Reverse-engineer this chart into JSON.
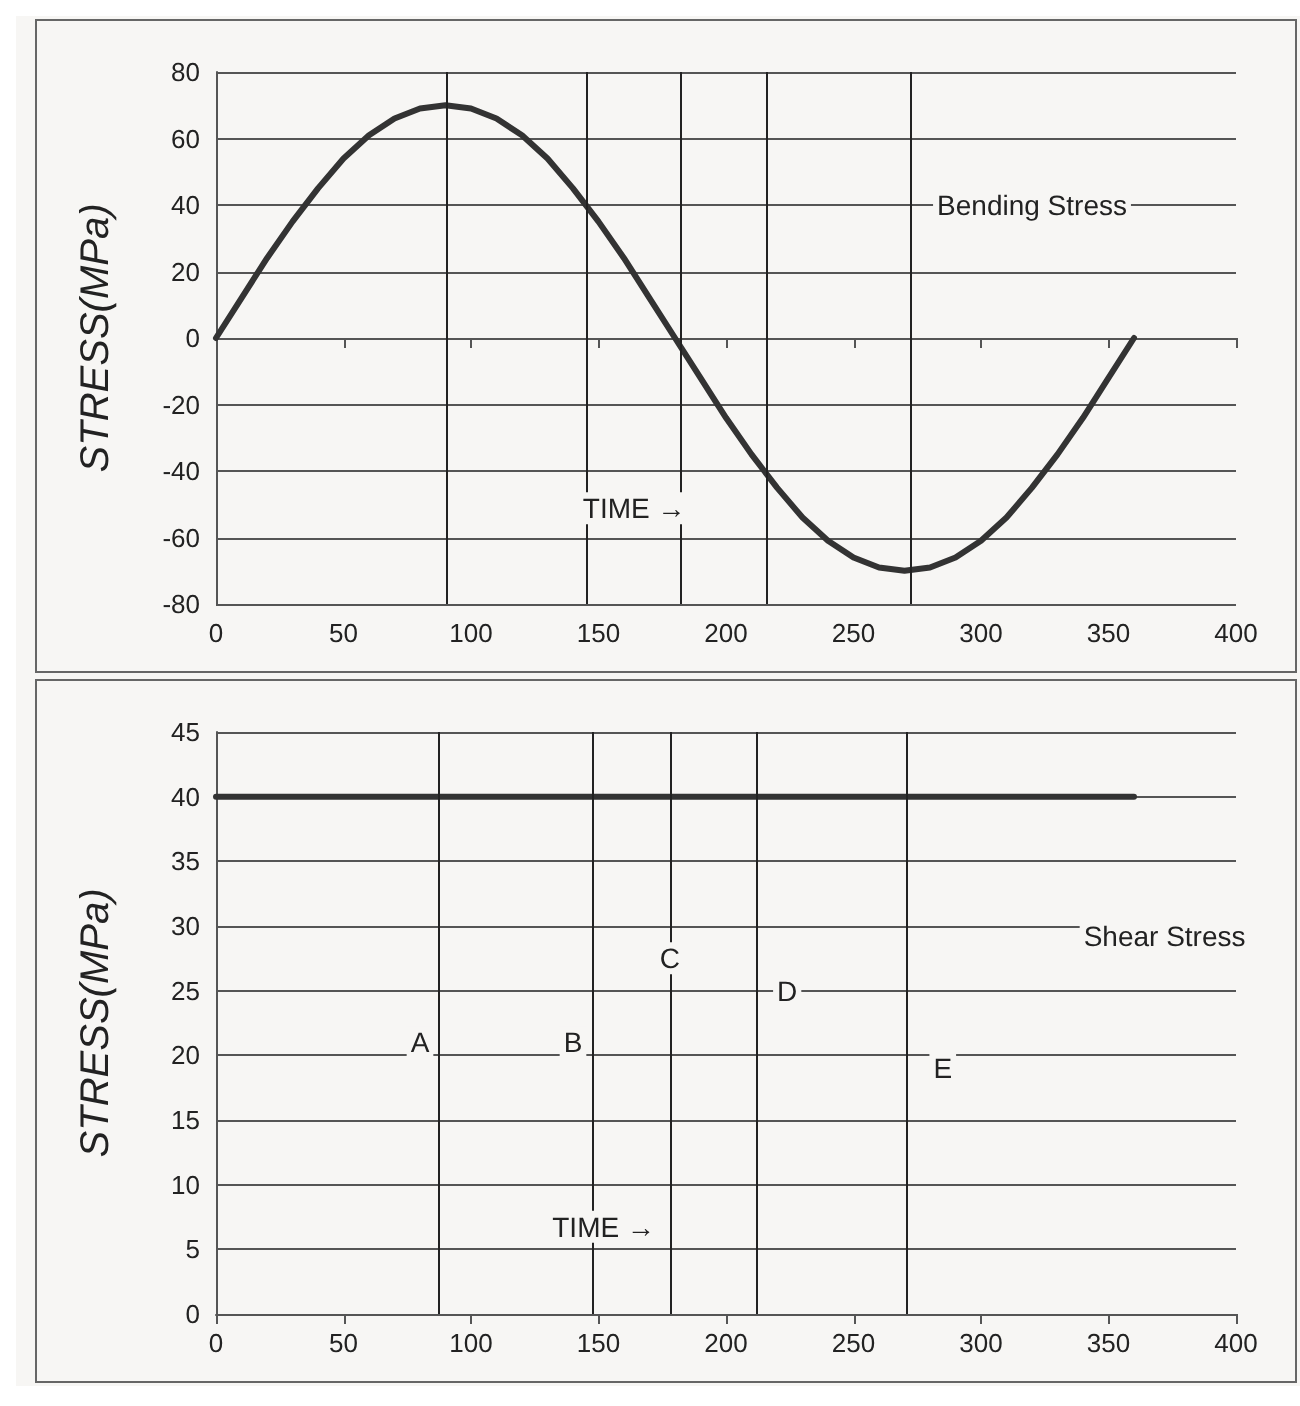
{
  "chart_data": [
    {
      "type": "line",
      "ylabel": "STRESS(MPa)",
      "x": [
        0,
        10,
        20,
        30,
        40,
        50,
        60,
        70,
        80,
        90,
        100,
        110,
        120,
        130,
        140,
        150,
        160,
        170,
        180,
        190,
        200,
        210,
        220,
        230,
        240,
        250,
        260,
        270,
        280,
        290,
        300,
        310,
        320,
        330,
        340,
        350,
        360
      ],
      "series": [
        {
          "color": "#333333",
          "values": [
            0,
            12,
            24,
            35,
            45,
            54,
            61,
            66,
            69,
            70,
            69,
            66,
            61,
            54,
            45,
            35,
            24,
            12,
            0,
            -12,
            -24,
            -35,
            -45,
            -54,
            -61,
            -66,
            -69,
            -70,
            -69,
            -66,
            -61,
            -54,
            -45,
            -35,
            -24,
            -12,
            0
          ]
        }
      ],
      "xlim": [
        0,
        400
      ],
      "xticks": [
        0,
        50,
        100,
        150,
        200,
        250,
        300,
        350,
        400
      ],
      "ylim": [
        -80,
        80
      ],
      "yticks": [
        -80,
        -60,
        -40,
        -20,
        0,
        20,
        40,
        60,
        80
      ],
      "grid": "y",
      "marker": "none",
      "line_style": "solid",
      "ref_lines": [
        {
          "axis": "x",
          "value": 90
        },
        {
          "axis": "x",
          "value": 145
        },
        {
          "axis": "x",
          "value": 182
        },
        {
          "axis": "x",
          "value": 216
        },
        {
          "axis": "x",
          "value": 272
        }
      ],
      "annotations": [
        "Bending Stress",
        "TIME →"
      ]
    },
    {
      "type": "line",
      "ylabel": "STRESS(MPa)",
      "x": [
        0,
        360
      ],
      "series": [
        {
          "color": "#333333",
          "values": [
            40,
            40
          ]
        }
      ],
      "xlim": [
        0,
        400
      ],
      "xticks": [
        0,
        50,
        100,
        150,
        200,
        250,
        300,
        350,
        400
      ],
      "ylim": [
        0,
        45
      ],
      "yticks": [
        0,
        5,
        10,
        15,
        20,
        25,
        30,
        35,
        40,
        45
      ],
      "grid": "y",
      "marker": "none",
      "line_style": "solid",
      "ref_lines": [
        {
          "axis": "x",
          "value": 87
        },
        {
          "axis": "x",
          "value": 148
        },
        {
          "axis": "x",
          "value": 178
        },
        {
          "axis": "x",
          "value": 212
        },
        {
          "axis": "x",
          "value": 271
        }
      ],
      "annotations": [
        "Shear Stress",
        {
          "text": "A",
          "x": 80,
          "y": 21
        },
        {
          "text": "B",
          "x": 140,
          "y": 21
        },
        {
          "text": "C",
          "x": 178,
          "y": 27.5
        },
        {
          "text": "D",
          "x": 224,
          "y": 25
        },
        {
          "text": "E",
          "x": 285,
          "y": 19
        },
        "TIME →"
      ]
    }
  ]
}
